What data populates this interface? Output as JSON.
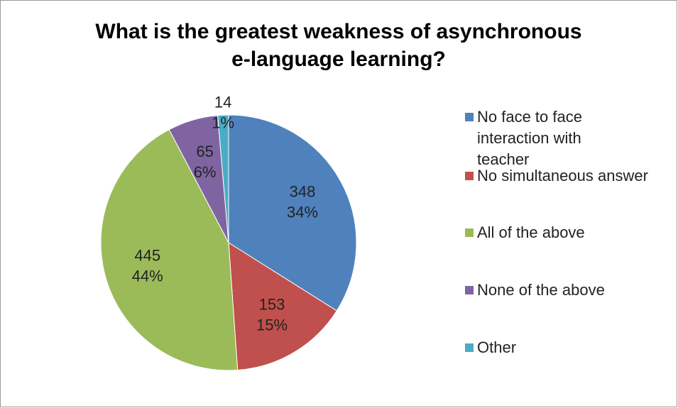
{
  "chart_data": {
    "type": "pie",
    "title": [
      "What is the greatest weakness of asynchronous",
      "e-language learning?"
    ],
    "categories": [
      "No face to face interaction with teacher",
      "No simultaneous answer",
      "All of the above",
      "None of the above",
      "Other"
    ],
    "values": [
      348,
      153,
      445,
      65,
      14
    ],
    "percent_labels": [
      "34%",
      "15%",
      "44%",
      "6%",
      "1%"
    ],
    "colors": [
      "#4F81BD",
      "#C0504D",
      "#9BBB59",
      "#8064A2",
      "#4BACC6"
    ],
    "legend": "right"
  }
}
